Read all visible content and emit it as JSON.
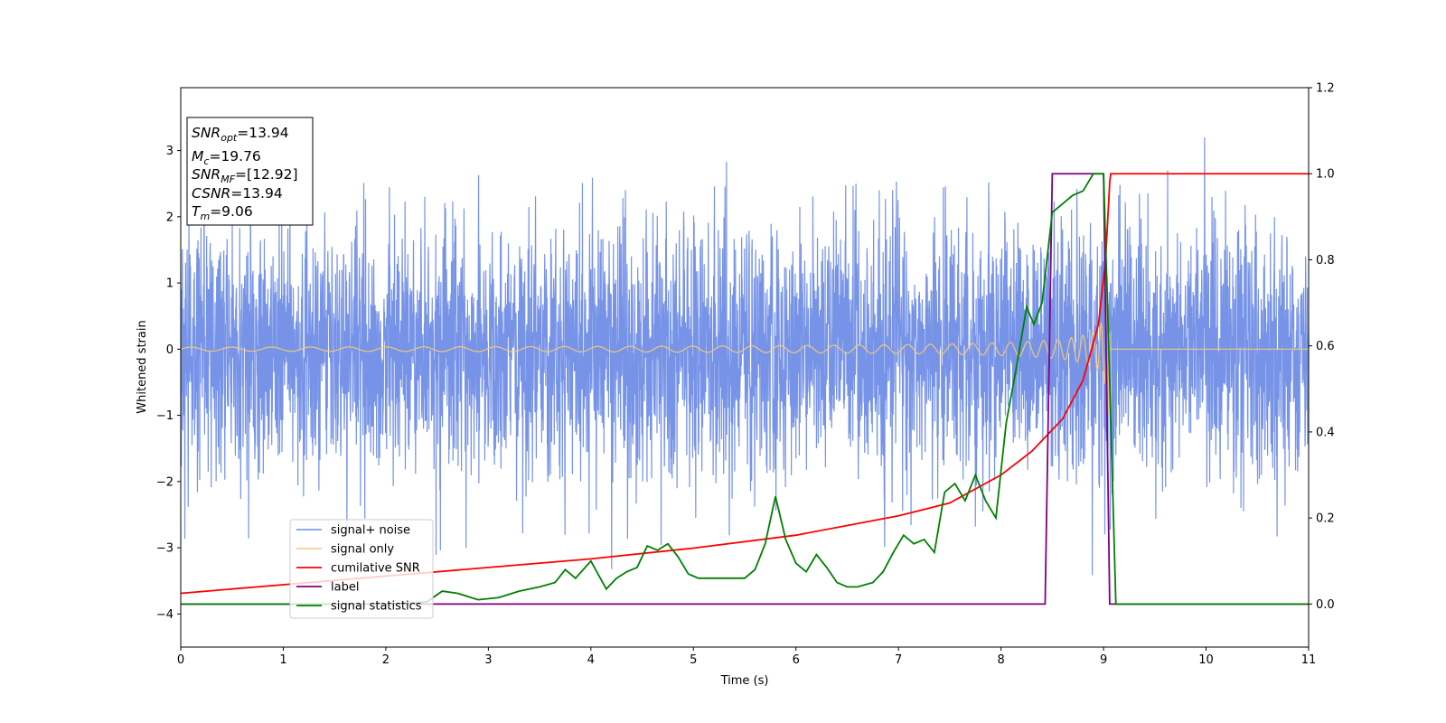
{
  "chart_data": {
    "type": "line",
    "xlabel": "Time (s)",
    "ylabel": "Whitened strain",
    "xlim": [
      0,
      11
    ],
    "ylim": [
      -4.5,
      3.95
    ],
    "y2lim": [
      -0.1,
      1.2
    ],
    "x_ticks": [
      "0",
      "1",
      "2",
      "3",
      "4",
      "5",
      "6",
      "7",
      "8",
      "9",
      "10",
      "11"
    ],
    "y_ticks": [
      "−4",
      "−3",
      "−2",
      "−1",
      "0",
      "1",
      "2",
      "3"
    ],
    "y2_ticks": [
      "0.0",
      "0.2",
      "0.4",
      "0.6",
      "0.8",
      "1.0",
      "1.2"
    ],
    "grid": false,
    "legend_position": "lower-left",
    "annotation": {
      "lines": [
        {
          "var": "SNR",
          "sub": "opt",
          "value": "=13.94"
        },
        {
          "var": "M",
          "sub": "c",
          "value": "=19.76"
        },
        {
          "var": "SNR",
          "sub": "MF",
          "value": "=[12.92]"
        },
        {
          "var": "CSNR",
          "sub": "",
          "value": "=13.94"
        },
        {
          "var": "T",
          "sub": "m",
          "value": "=9.06"
        }
      ]
    },
    "series": [
      {
        "name": "signal+ noise",
        "axis": "left",
        "color": "#6f8de6",
        "kind": "noise",
        "amplitude_std": 0.95,
        "range_y": [
          -4.15,
          3.6
        ]
      },
      {
        "name": "signal only",
        "axis": "left",
        "color": "#f5c87a",
        "kind": "chirp",
        "start_amplitude": 0.03,
        "peak_amplitude": 1.0,
        "merger_time": 9.06
      },
      {
        "name": "cumilative SNR",
        "axis": "right",
        "color": "#ff0000",
        "x": [
          0,
          1,
          2,
          3,
          4,
          5,
          6,
          7,
          7.5,
          8,
          8.3,
          8.6,
          8.8,
          8.95,
          9.02,
          9.06,
          9.07,
          11
        ],
        "y": [
          0.025,
          0.045,
          0.065,
          0.085,
          0.105,
          0.13,
          0.16,
          0.205,
          0.235,
          0.3,
          0.355,
          0.43,
          0.52,
          0.65,
          0.8,
          0.98,
          1.0,
          1.0
        ]
      },
      {
        "name": "label",
        "axis": "right",
        "color": "#800080",
        "x": [
          0,
          8.43,
          8.5,
          9.0,
          9.06,
          11
        ],
        "y": [
          0,
          0,
          1,
          1,
          0,
          0
        ]
      },
      {
        "name": "signal statistics",
        "axis": "right",
        "color": "#008000",
        "x": [
          0,
          1,
          2,
          2.4,
          2.55,
          2.7,
          2.9,
          3.1,
          3.3,
          3.5,
          3.65,
          3.75,
          3.85,
          4.0,
          4.15,
          4.25,
          4.35,
          4.45,
          4.55,
          4.65,
          4.75,
          4.85,
          4.95,
          5.05,
          5.2,
          5.35,
          5.5,
          5.6,
          5.7,
          5.8,
          5.9,
          6.0,
          6.1,
          6.2,
          6.3,
          6.4,
          6.5,
          6.6,
          6.75,
          6.85,
          6.95,
          7.05,
          7.15,
          7.25,
          7.35,
          7.45,
          7.55,
          7.65,
          7.75,
          7.85,
          7.95,
          8.05,
          8.15,
          8.25,
          8.32,
          8.4,
          8.5,
          8.6,
          8.7,
          8.8,
          8.9,
          9.0,
          9.05,
          9.12,
          11
        ],
        "y": [
          0.0,
          0.0,
          0.0,
          0.005,
          0.03,
          0.025,
          0.01,
          0.015,
          0.03,
          0.04,
          0.05,
          0.08,
          0.06,
          0.1,
          0.035,
          0.06,
          0.075,
          0.085,
          0.135,
          0.125,
          0.14,
          0.11,
          0.07,
          0.06,
          0.06,
          0.06,
          0.06,
          0.08,
          0.14,
          0.25,
          0.15,
          0.095,
          0.075,
          0.115,
          0.085,
          0.05,
          0.04,
          0.04,
          0.05,
          0.075,
          0.12,
          0.16,
          0.14,
          0.15,
          0.12,
          0.26,
          0.28,
          0.24,
          0.3,
          0.24,
          0.2,
          0.42,
          0.55,
          0.69,
          0.65,
          0.7,
          0.91,
          0.93,
          0.95,
          0.96,
          1.0,
          1.0,
          0.6,
          0.0,
          0.0
        ]
      }
    ]
  }
}
